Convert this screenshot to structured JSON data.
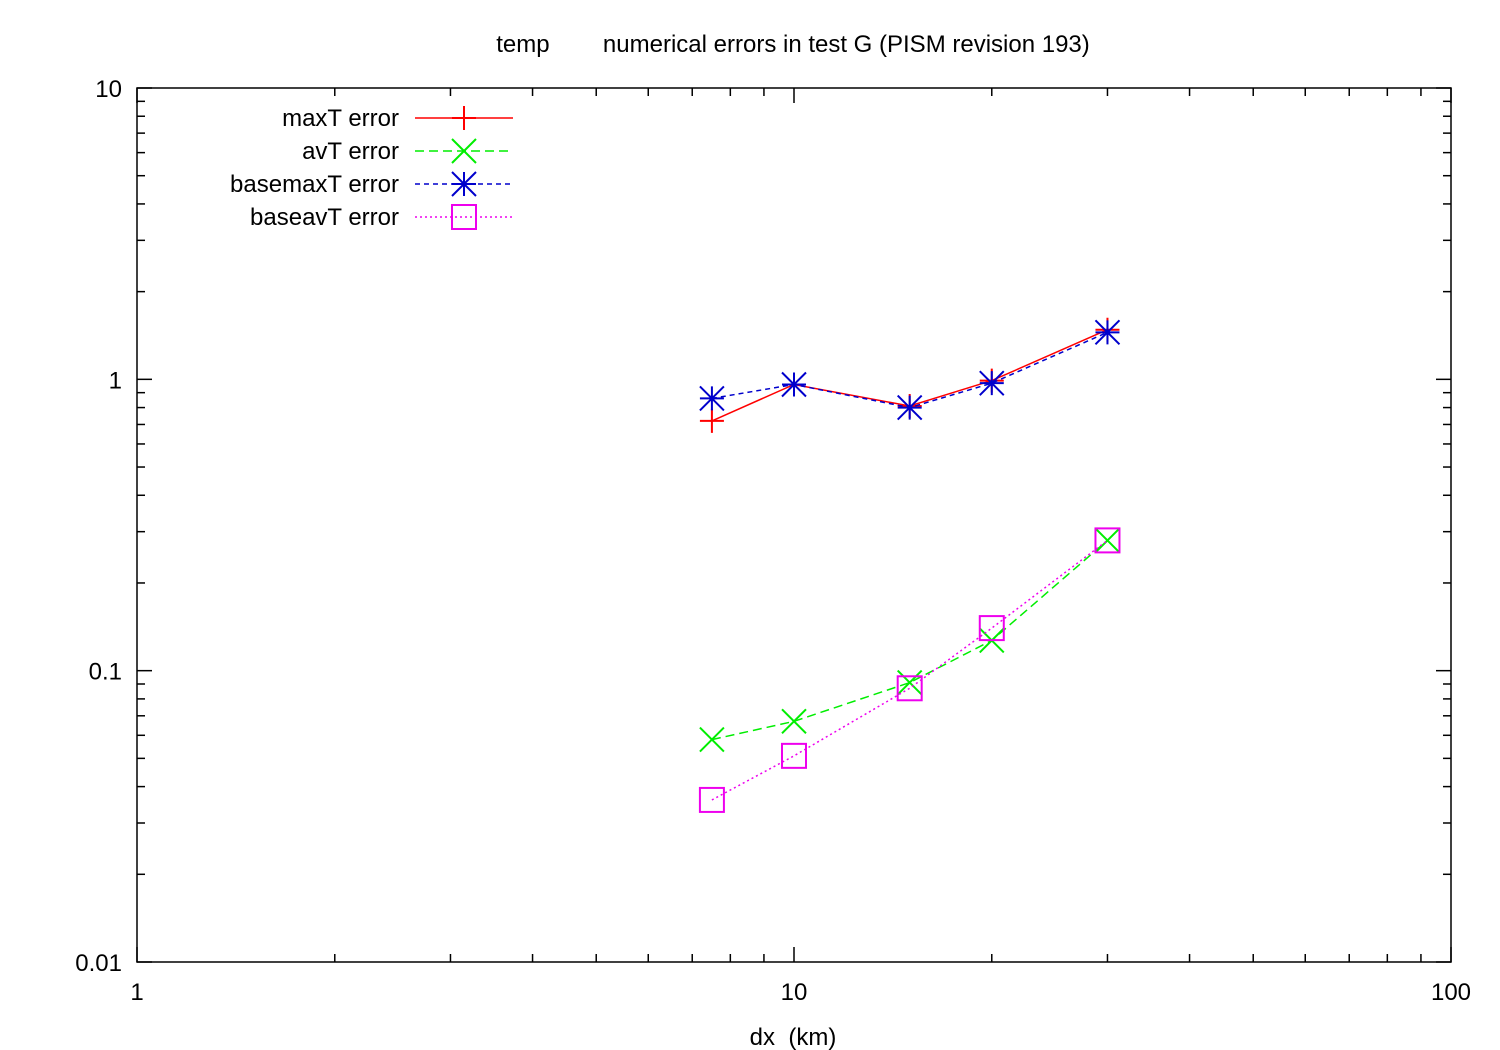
{
  "chart_data": {
    "type": "line",
    "title": "temp        numerical errors in test G (PISM revision 193)",
    "xlabel": "dx  (km)",
    "ylabel": "",
    "xscale": "log",
    "yscale": "log",
    "xlim": [
      1,
      100
    ],
    "ylim": [
      0.01,
      10
    ],
    "x_ticks": [
      {
        "value": 1,
        "label": "1"
      },
      {
        "value": 10,
        "label": "10"
      },
      {
        "value": 100,
        "label": "100"
      }
    ],
    "y_ticks": [
      {
        "value": 0.01,
        "label": "0.01"
      },
      {
        "value": 0.1,
        "label": "0.1"
      },
      {
        "value": 1,
        "label": "1"
      },
      {
        "value": 10,
        "label": "10"
      }
    ],
    "grid": false,
    "legend_position": "top-left",
    "series": [
      {
        "name": "maxT error",
        "color": "#ff0000",
        "dash": "solid",
        "marker": "plus",
        "x": [
          7.5,
          10,
          15,
          20,
          30
        ],
        "y": [
          0.72,
          0.96,
          0.81,
          0.99,
          1.48
        ]
      },
      {
        "name": "avT error",
        "color": "#00ee00",
        "dash": "dashed",
        "marker": "cross",
        "x": [
          7.5,
          10,
          15,
          20,
          30
        ],
        "y": [
          0.058,
          0.067,
          0.091,
          0.127,
          0.28
        ]
      },
      {
        "name": "basemaxT error",
        "color": "#0000cc",
        "dash": "short-dashed",
        "marker": "star",
        "x": [
          7.5,
          10,
          15,
          20,
          30
        ],
        "y": [
          0.86,
          0.96,
          0.8,
          0.97,
          1.45
        ]
      },
      {
        "name": "baseavT error",
        "color": "#ee00ee",
        "dash": "dotted",
        "marker": "square",
        "x": [
          7.5,
          10,
          15,
          20,
          30
        ],
        "y": [
          0.036,
          0.051,
          0.087,
          0.14,
          0.28
        ]
      }
    ]
  }
}
